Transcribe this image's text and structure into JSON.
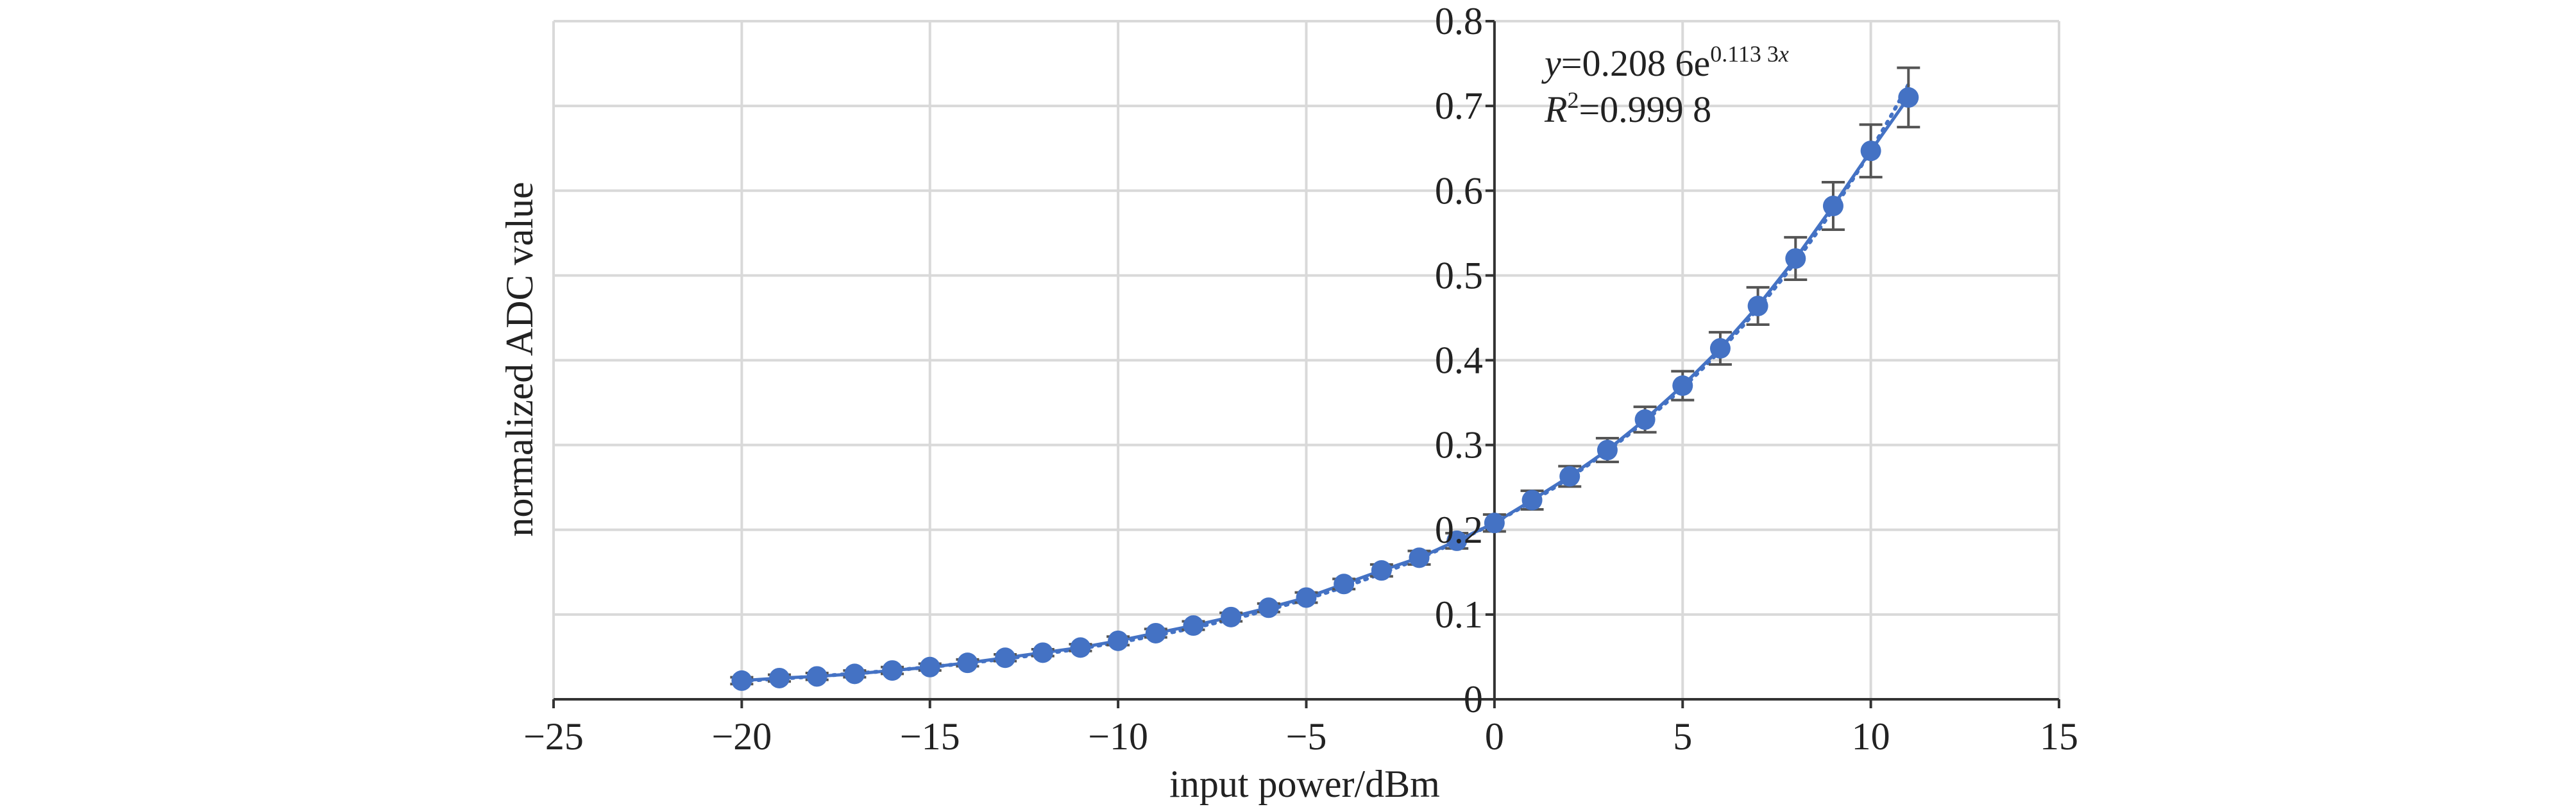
{
  "chart_data": {
    "type": "scatter",
    "title": "",
    "xlabel": "input power/dBm",
    "ylabel": "normalized ADC value",
    "xlim": [
      -25,
      15
    ],
    "ylim": [
      0,
      0.8
    ],
    "x_ticks": [
      -25,
      -20,
      -15,
      -10,
      -5,
      0,
      5,
      10,
      15
    ],
    "x_tick_labels": [
      "−25",
      "−20",
      "−15",
      "−10",
      "−5",
      "0",
      "5",
      "10",
      "15"
    ],
    "y_ticks": [
      0,
      0.1,
      0.2,
      0.3,
      0.4,
      0.5,
      0.6,
      0.7,
      0.8
    ],
    "y_tick_labels": [
      "0",
      "0.1",
      "0.2",
      "0.3",
      "0.4",
      "0.5",
      "0.6",
      "0.7",
      "0.8"
    ],
    "grid": true,
    "series": [
      {
        "color": "#4472c4",
        "marker": "circle",
        "line": "solid",
        "x": [
          -20,
          -19,
          -18,
          -17,
          -16,
          -15,
          -14,
          -13,
          -12,
          -11,
          -10,
          -9,
          -8,
          -7,
          -6,
          -5,
          -4,
          -3,
          -2,
          -1,
          0,
          1,
          2,
          3,
          4,
          5,
          6,
          7,
          8,
          9,
          10,
          11
        ],
        "y": [
          0.022,
          0.025,
          0.027,
          0.03,
          0.034,
          0.038,
          0.043,
          0.049,
          0.055,
          0.061,
          0.069,
          0.078,
          0.087,
          0.097,
          0.108,
          0.12,
          0.136,
          0.152,
          0.167,
          0.187,
          0.208,
          0.235,
          0.263,
          0.294,
          0.33,
          0.37,
          0.414,
          0.464,
          0.52,
          0.582,
          0.647,
          0.71
        ],
        "error": [
          0.004,
          0.004,
          0.004,
          0.004,
          0.004,
          0.004,
          0.004,
          0.004,
          0.004,
          0.004,
          0.005,
          0.005,
          0.005,
          0.005,
          0.005,
          0.006,
          0.006,
          0.007,
          0.008,
          0.009,
          0.01,
          0.011,
          0.012,
          0.014,
          0.015,
          0.017,
          0.019,
          0.022,
          0.025,
          0.028,
          0.031,
          0.035
        ]
      }
    ],
    "trendline": {
      "type": "exponential",
      "style": "dotted",
      "color": "#4472c4",
      "a": 0.2086,
      "b": 0.1133,
      "x_range": [
        -20,
        11
      ]
    },
    "annotation": {
      "equation_y": "y",
      "equation_rest": "=0.208 6e",
      "equation_exponent": "0.113 3",
      "equation_exponent_var": "x",
      "r2_var": "R",
      "r2_sup": "2",
      "r2_value": "=0.999 8",
      "position": "top-right"
    },
    "colors": {
      "series": "#4472c4",
      "error_bar": "#555555",
      "grid": "#d9d9d9",
      "axis": "#333333"
    }
  }
}
